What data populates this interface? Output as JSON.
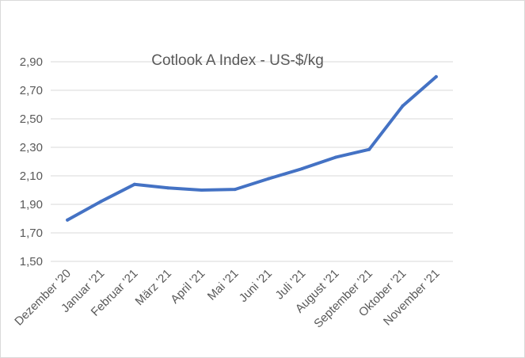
{
  "chart_data": {
    "type": "line",
    "title": "Cotlook A Index -  US-$/kg",
    "xlabel": "",
    "ylabel": "",
    "categories": [
      "Dezember '20",
      "Januar '21",
      "Februar '21",
      "März '21",
      "April '21",
      "Mai '21",
      "Juni '21",
      "Juli '21",
      "August '21",
      "September '21",
      "Oktober '21",
      "November '21"
    ],
    "series": [
      {
        "values": [
          1.79,
          1.92,
          2.04,
          2.015,
          2.0,
          2.005,
          2.08,
          2.15,
          2.23,
          2.285,
          2.59,
          2.795
        ]
      }
    ],
    "ylim": [
      1.5,
      2.9
    ],
    "yticks": [
      "1,50",
      "1,70",
      "1,90",
      "2,10",
      "2,30",
      "2,50",
      "2,70",
      "2,90"
    ],
    "ytick_values": [
      1.5,
      1.7,
      1.9,
      2.1,
      2.3,
      2.5,
      2.7,
      2.9
    ],
    "grid": true,
    "legend": "none",
    "line_color": "#4472c4",
    "grid_color": "#d9d9d9",
    "text_color": "#595959"
  }
}
